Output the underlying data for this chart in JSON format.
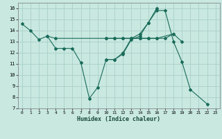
{
  "xlabel": "Humidex (Indice chaleur)",
  "xlim": [
    -0.5,
    23.5
  ],
  "ylim": [
    7,
    16.5
  ],
  "xticks": [
    0,
    1,
    2,
    3,
    4,
    5,
    6,
    7,
    8,
    9,
    10,
    11,
    12,
    13,
    14,
    15,
    16,
    17,
    18,
    19,
    20,
    21,
    22,
    23
  ],
  "yticks": [
    7,
    8,
    9,
    10,
    11,
    12,
    13,
    14,
    15,
    16
  ],
  "bg_color": "#c8e8e0",
  "grid_color": "#aad0c8",
  "line_color": "#1a6b5a",
  "series": [
    {
      "x": [
        0,
        1,
        2,
        3,
        4,
        5,
        6,
        7,
        8,
        9,
        10,
        11,
        12,
        13,
        14,
        15,
        16,
        17,
        18,
        19,
        20,
        22
      ],
      "y": [
        14.6,
        14.0,
        13.2,
        13.5,
        12.4,
        12.4,
        12.4,
        11.1,
        7.9,
        8.9,
        11.4,
        11.4,
        11.9,
        13.2,
        13.5,
        14.7,
        15.8,
        15.8,
        13.0,
        11.2,
        8.7,
        7.4
      ]
    },
    {
      "x": [
        3,
        4,
        10,
        11,
        12,
        13,
        14,
        15,
        16,
        18
      ],
      "y": [
        13.5,
        13.3,
        13.3,
        13.3,
        13.3,
        13.3,
        13.3,
        13.3,
        13.3,
        13.7
      ]
    },
    {
      "x": [
        10,
        11,
        12,
        13,
        14,
        15,
        16,
        17,
        18,
        19
      ],
      "y": [
        13.3,
        13.3,
        13.3,
        13.3,
        13.3,
        13.3,
        13.3,
        13.3,
        13.7,
        13.0
      ]
    },
    {
      "x": [
        10,
        11,
        12,
        13,
        14,
        15,
        16
      ],
      "y": [
        11.4,
        11.4,
        12.0,
        13.3,
        13.7,
        14.7,
        16.0
      ]
    }
  ]
}
